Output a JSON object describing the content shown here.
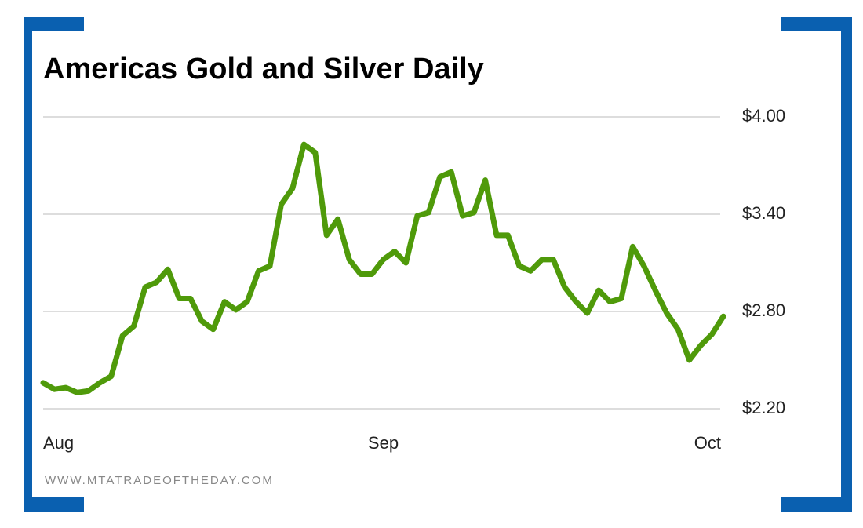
{
  "chart_data": {
    "type": "line",
    "title": "Americas Gold and Silver Daily",
    "footer": "WWW.MTATRADEOFTHEDAY.COM",
    "categories": [
      "Aug",
      null,
      null,
      null,
      null,
      null,
      null,
      null,
      null,
      null,
      null,
      null,
      null,
      null,
      null,
      null,
      null,
      null,
      null,
      null,
      null,
      null,
      null,
      null,
      null,
      null,
      null,
      null,
      null,
      null,
      "Sep",
      null,
      null,
      null,
      null,
      null,
      null,
      null,
      null,
      null,
      null,
      null,
      null,
      null,
      null,
      null,
      null,
      null,
      null,
      null,
      null,
      null,
      null,
      null,
      null,
      null,
      null,
      null,
      null,
      null,
      "Oct"
    ],
    "series": [
      {
        "name": "Americas Gold and Silver",
        "color": "#4f9a0a",
        "values": [
          2.36,
          2.32,
          2.33,
          2.3,
          2.31,
          2.36,
          2.4,
          2.65,
          2.71,
          2.95,
          2.98,
          3.06,
          2.88,
          2.88,
          2.74,
          2.69,
          2.86,
          2.81,
          2.86,
          3.05,
          3.08,
          3.46,
          3.56,
          3.83,
          3.78,
          3.27,
          3.37,
          3.12,
          3.03,
          3.03,
          3.12,
          3.17,
          3.1,
          3.39,
          3.41,
          3.63,
          3.66,
          3.39,
          3.41,
          3.61,
          3.27,
          3.27,
          3.08,
          3.05,
          3.12,
          3.12,
          2.95,
          2.86,
          2.79,
          2.93,
          2.86,
          2.88,
          3.2,
          3.08,
          2.93,
          2.79,
          2.69,
          2.5,
          2.59,
          2.66,
          2.77
        ]
      }
    ],
    "ylim": [
      2.2,
      4.0
    ],
    "yticks": [
      {
        "value": 2.2,
        "label": "$2.20"
      },
      {
        "value": 2.8,
        "label": "$2.80"
      },
      {
        "value": 3.4,
        "label": "$3.40"
      },
      {
        "value": 4.0,
        "label": "$4.00"
      }
    ],
    "grid": true
  }
}
